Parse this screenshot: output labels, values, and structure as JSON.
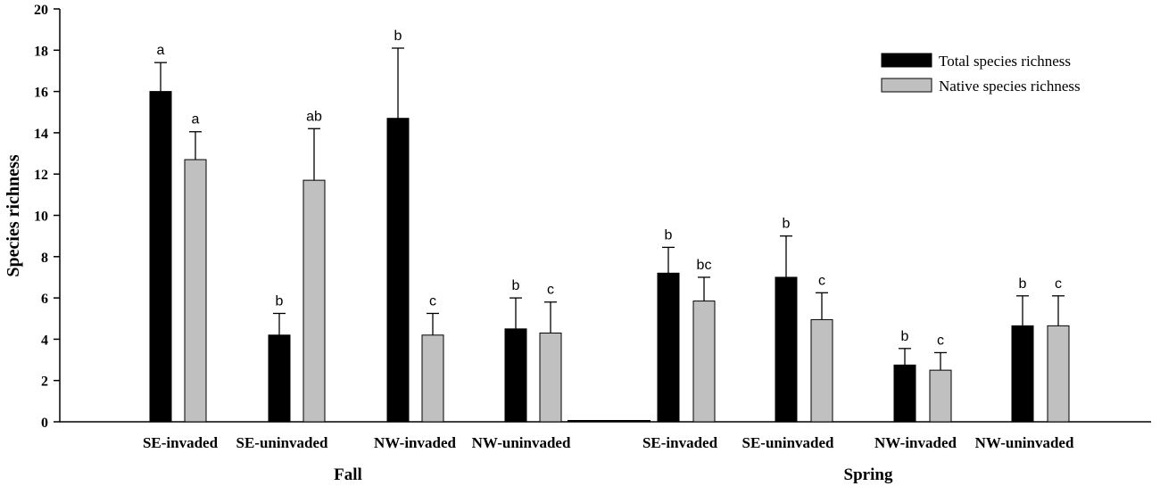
{
  "chart_data": {
    "type": "bar",
    "ylabel": "Species richness",
    "ylim": [
      0,
      20
    ],
    "yticks": [
      0,
      2,
      4,
      6,
      8,
      10,
      12,
      14,
      16,
      18,
      20
    ],
    "groups": [
      {
        "label": "Fall",
        "categories": [
          "SE-invaded",
          "SE-uninvaded",
          "NW-invaded",
          "NW-uninvaded"
        ]
      },
      {
        "label": "Spring",
        "categories": [
          "SE-invaded",
          "SE-uninvaded",
          "NW-invaded",
          "NW-uninvaded"
        ]
      }
    ],
    "series": [
      {
        "name": "Total species richness",
        "color": "#000000",
        "values": [
          16.0,
          4.2,
          14.7,
          4.5,
          7.2,
          7.0,
          2.75,
          4.65
        ],
        "errors": [
          1.4,
          1.05,
          3.4,
          1.5,
          1.25,
          2.0,
          0.8,
          1.45
        ],
        "sig": [
          "a",
          "b",
          "b",
          "b",
          "b",
          "b",
          "b",
          "b"
        ]
      },
      {
        "name": "Native species richness",
        "color": "#c0c0c0",
        "values": [
          12.7,
          11.7,
          4.2,
          4.3,
          5.85,
          4.95,
          2.5,
          4.65
        ],
        "errors": [
          1.35,
          2.5,
          1.05,
          1.5,
          1.15,
          1.3,
          0.85,
          1.45
        ],
        "sig": [
          "a",
          "ab",
          "c",
          "c",
          "bc",
          "c",
          "c",
          "c"
        ]
      }
    ],
    "legend_position": "top-right"
  }
}
